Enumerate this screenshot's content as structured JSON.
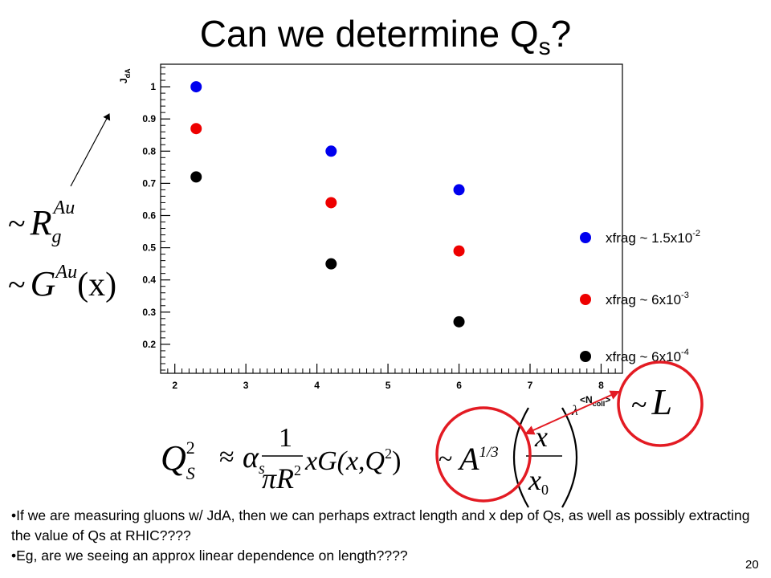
{
  "slide": {
    "title_main": "Can we determine Q",
    "title_sub": "s",
    "title_end": "?",
    "page_number": "20",
    "bullets": [
      "•If we are measuring gluons w/ JdA, then we can perhaps extract length and x  dep of Qs, as well as possibly extracting the value of Qs at RHIC????",
      "•Eg, are we seeing an approx linear dependence on length????"
    ]
  },
  "chart_data": {
    "type": "scatter",
    "xlabel": {
      "main": "<N",
      "sub": "coll",
      "end": ">"
    },
    "ylabel": {
      "main": "J",
      "sub": "dA"
    },
    "xlim": [
      1.8,
      8.3
    ],
    "ylim": [
      0.11,
      1.07
    ],
    "xticks": [
      2,
      3,
      4,
      5,
      6,
      7,
      8
    ],
    "yticks": [
      0.2,
      0.3,
      0.4,
      0.5,
      0.6,
      0.7,
      0.8,
      0.9,
      1
    ],
    "grid": false,
    "series": [
      {
        "name_main": "xfrag ~ 1.5x10",
        "name_exp": "-2",
        "color": "#0000ee",
        "points": [
          {
            "x": 2.3,
            "y": 1.0
          },
          {
            "x": 4.2,
            "y": 0.8
          },
          {
            "x": 6.0,
            "y": 0.68
          }
        ]
      },
      {
        "name_main": "xfrag ~ 6x10",
        "name_exp": "-3",
        "color": "#ee0000",
        "points": [
          {
            "x": 2.3,
            "y": 0.87
          },
          {
            "x": 4.2,
            "y": 0.64
          },
          {
            "x": 6.0,
            "y": 0.49
          }
        ]
      },
      {
        "name_main": "xfrag ~ 6x10",
        "name_exp": "-4",
        "color": "#000000",
        "points": [
          {
            "x": 2.3,
            "y": 0.72
          },
          {
            "x": 4.2,
            "y": 0.45
          },
          {
            "x": 6.0,
            "y": 0.27
          }
        ]
      }
    ]
  },
  "annotations": {
    "rg": {
      "tilde": "~",
      "r": "R",
      "sub": "g",
      "sup": "Au"
    },
    "gx": {
      "tilde": "~",
      "g": "G",
      "sup": "Au",
      "arg": "(x)"
    },
    "l": {
      "tilde": "~",
      "l": "L"
    }
  },
  "equation": {
    "q": "Q",
    "q_sub": "S",
    "q_sup": "2",
    "approx": "≈",
    "alpha": "α",
    "alpha_sub": "s",
    "num": "1",
    "den_pi": "π",
    "den_r": "R",
    "den_sup": "2",
    "xg": "xG(x,Q",
    "xg_sup": "2",
    "xg_close": ")",
    "tilde": "~",
    "a": "A",
    "a_sup": "1/3",
    "frac_x": "x",
    "frac_x0": "x",
    "frac_x0_sub": "0",
    "lambda": "λ"
  }
}
